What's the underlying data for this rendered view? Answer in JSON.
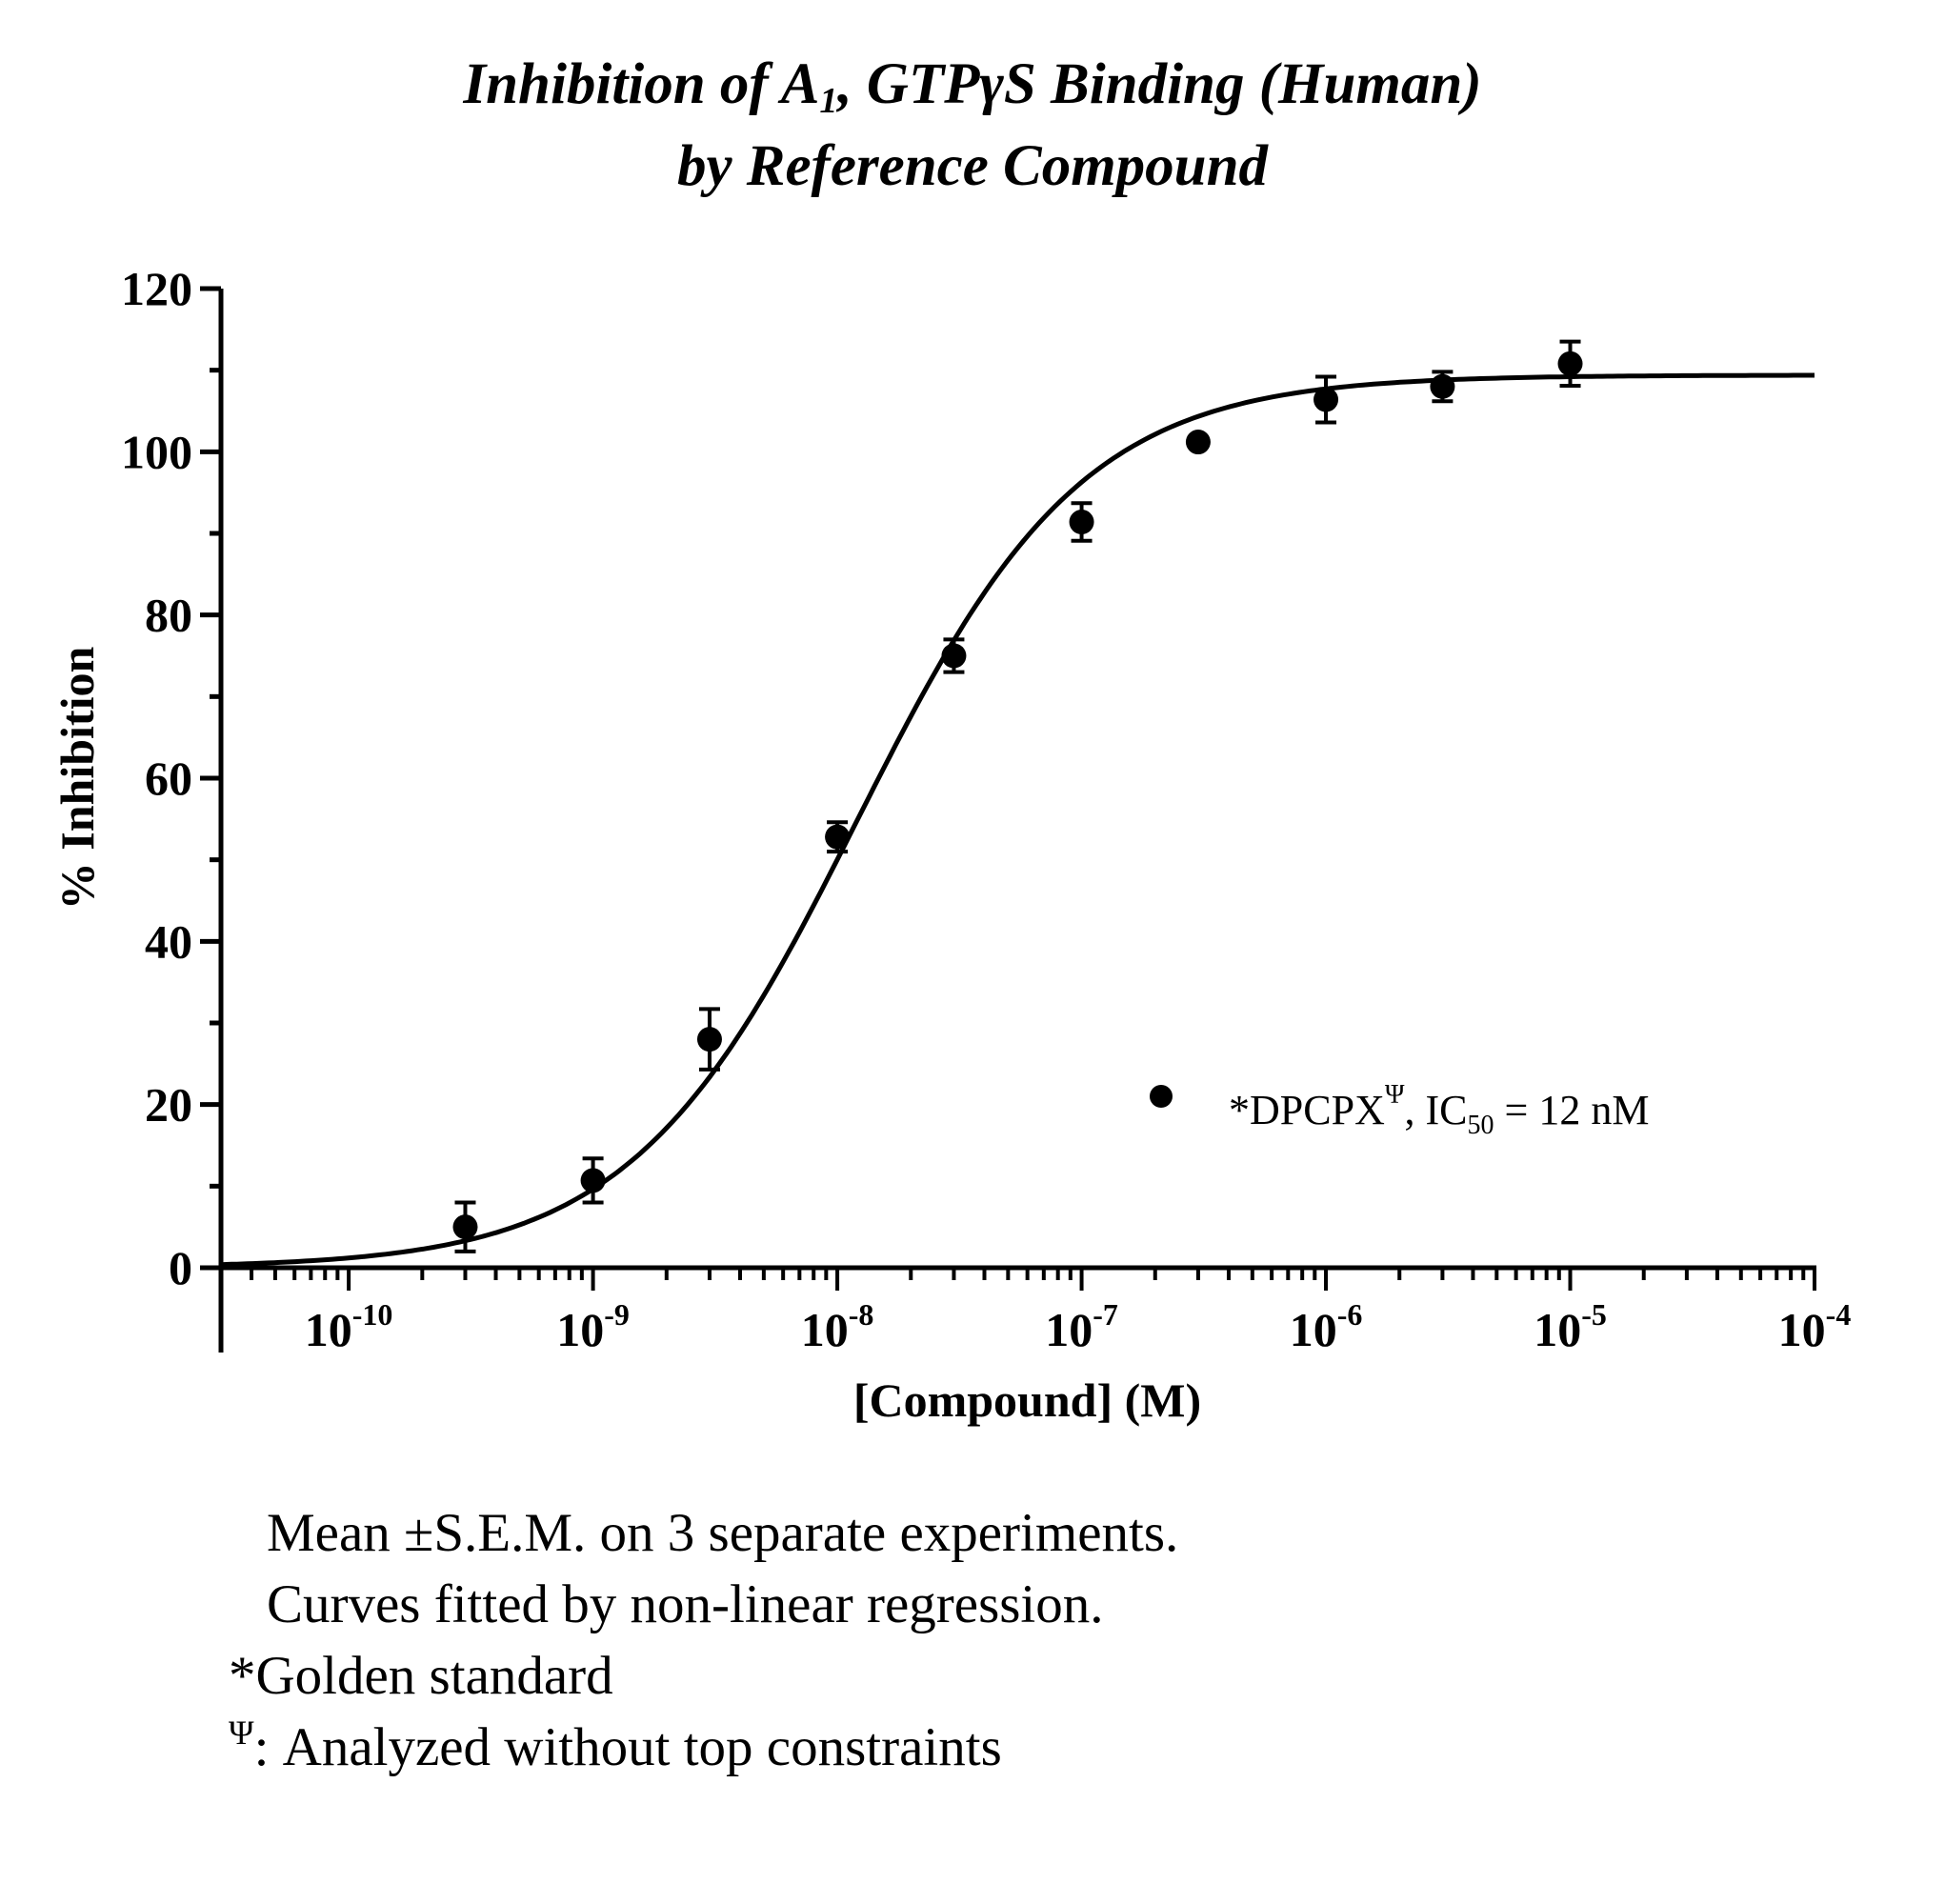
{
  "title": {
    "prefix": "Inhibition of  A",
    "sub": "1",
    "suffix": ", GTPγS Binding (Human)",
    "line2": "by Reference Compound"
  },
  "chart_data": {
    "type": "scatter",
    "title": "Inhibition of A1, GTPγS Binding (Human) by Reference Compound",
    "xlabel": "[Compound] (M)",
    "ylabel": "% Inhibition",
    "x_scale": "log",
    "xlim": [
      3e-11,
      0.0001
    ],
    "ylim": [
      0,
      120
    ],
    "y_ticks": [
      0,
      20,
      40,
      60,
      80,
      100,
      120
    ],
    "x_ticks": [
      {
        "value": 1e-10,
        "base": "10",
        "exp": "-10"
      },
      {
        "value": 1e-09,
        "base": "10",
        "exp": "-9"
      },
      {
        "value": 1e-08,
        "base": "10",
        "exp": "-8"
      },
      {
        "value": 1e-07,
        "base": "10",
        "exp": "-7"
      },
      {
        "value": 1e-06,
        "base": "10",
        "exp": "-6"
      },
      {
        "value": 1e-05,
        "base": "10",
        "exp": "-5"
      },
      {
        "value": 0.0001,
        "base": "10",
        "exp": "-4"
      }
    ],
    "legend_position": "lower-right",
    "legend": {
      "text": "*DPCPX",
      "sup": "Ψ",
      "text2": ", IC",
      "sub": "50",
      "text3": " = 12 nM"
    },
    "series": [
      {
        "name": "*DPCPXΨ",
        "marker": "circle",
        "color": "#000000",
        "points": [
          {
            "x": 3e-10,
            "y": 5.0,
            "err": 3.0
          },
          {
            "x": 1e-09,
            "y": 10.7,
            "err": 2.7
          },
          {
            "x": 3e-09,
            "y": 28.0,
            "err": 3.7
          },
          {
            "x": 1e-08,
            "y": 52.8,
            "err": 1.8
          },
          {
            "x": 3e-08,
            "y": 75.0,
            "err": 2.0
          },
          {
            "x": 1e-07,
            "y": 91.4,
            "err": 2.3
          },
          {
            "x": 3e-07,
            "y": 101.2,
            "err": 0
          },
          {
            "x": 1e-06,
            "y": 106.4,
            "err": 2.8
          },
          {
            "x": 3e-06,
            "y": 108.0,
            "err": 1.8
          },
          {
            "x": 1e-05,
            "y": 110.8,
            "err": 2.7
          }
        ],
        "fit": {
          "model": "four-parameter logistic",
          "bottom": 0,
          "top": 109.4,
          "ic50": 1.2e-08,
          "hill": 0.94
        }
      }
    ]
  },
  "notes": {
    "line1": "Mean ±S.E.M. on 3 separate experiments.",
    "line2": "Curves fitted by non-linear regression.",
    "line3": "*Golden standard",
    "line4_sup": "Ψ",
    "line4": ": Analyzed without top constraints"
  }
}
